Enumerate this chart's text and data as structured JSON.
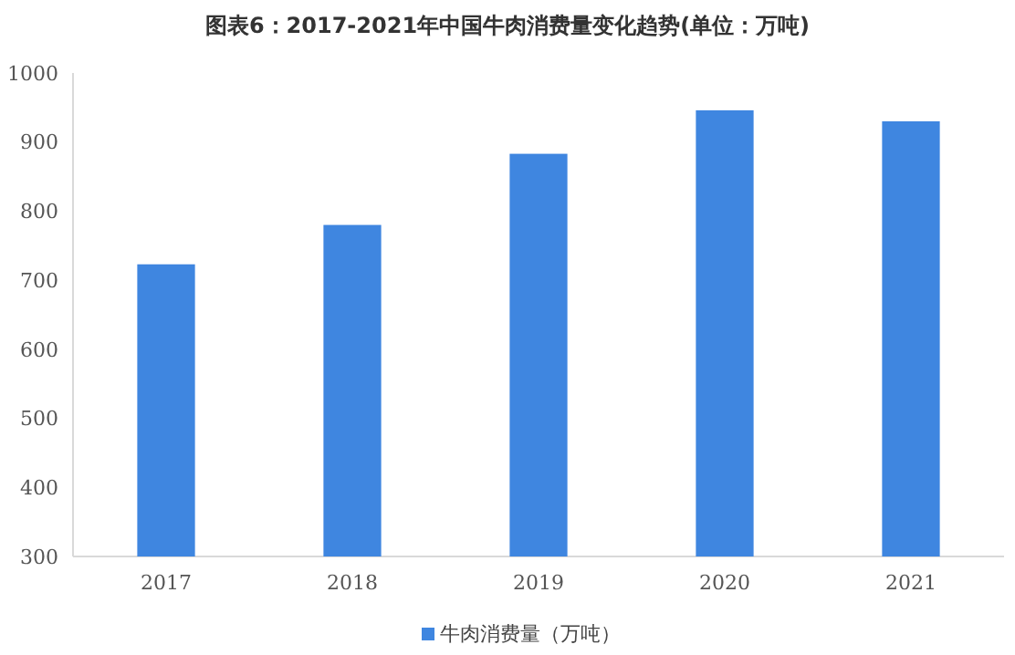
{
  "chart_data": {
    "type": "bar",
    "title": "图表6：2017-2021年中国牛肉消费量变化趋势(单位：万吨)",
    "categories": [
      "2017",
      "2018",
      "2019",
      "2020",
      "2021"
    ],
    "series": [
      {
        "name": "牛肉消费量（万吨）",
        "color": "#3f86e0",
        "values": [
          723,
          780,
          883,
          946,
          930
        ]
      }
    ],
    "ylim": [
      300,
      1000
    ],
    "yticks": [
      300,
      400,
      500,
      600,
      700,
      800,
      900,
      1000
    ],
    "legend": "bottom"
  }
}
